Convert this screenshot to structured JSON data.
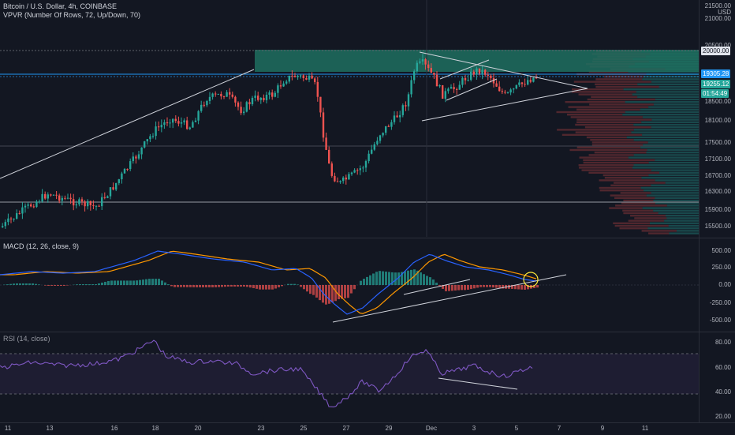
{
  "main_legend": {
    "symbol": "Bitcoin / U.S. Dollar, 4h, COINBASE",
    "vpvr": "VPVR (Number Of Rows, 72, Up/Down, 70)"
  },
  "macd_legend": "MACD (12, 26, close, 9)",
  "rsi_legend": "RSI (14, close)",
  "price_axis": {
    "top_labels": [
      "21500.00",
      "USD"
    ],
    "ticks": [
      "21000.00",
      "20500.00",
      "20000.00",
      "18500.00",
      "18100.00",
      "17500.00",
      "17100.00",
      "16700.00",
      "16300.00",
      "15900.00",
      "15500.00"
    ],
    "tags": {
      "level_20000": "20000.00",
      "level_19305": "19305.28",
      "last_price": "19255.12",
      "countdown": "01:54:49"
    }
  },
  "macd_axis": [
    "500.00",
    "250.00",
    "0.00",
    "-250.00",
    "-500.00"
  ],
  "rsi_axis": [
    "80.00",
    "60.00",
    "40.00",
    "20.00"
  ],
  "time_axis": [
    "11",
    "13",
    "16",
    "18",
    "20",
    "23",
    "25",
    "27",
    "29",
    "Dec",
    "3",
    "5",
    "7",
    "9",
    "11"
  ],
  "colors": {
    "background": "#131722",
    "bull": "#26a69a",
    "bear": "#ef5350",
    "macd_line": "#2962ff",
    "signal_line": "#ff9800",
    "rsi_line": "#7e57c2",
    "supply_zone": "#1e6e5f",
    "price_tag": "#2196f3"
  }
}
